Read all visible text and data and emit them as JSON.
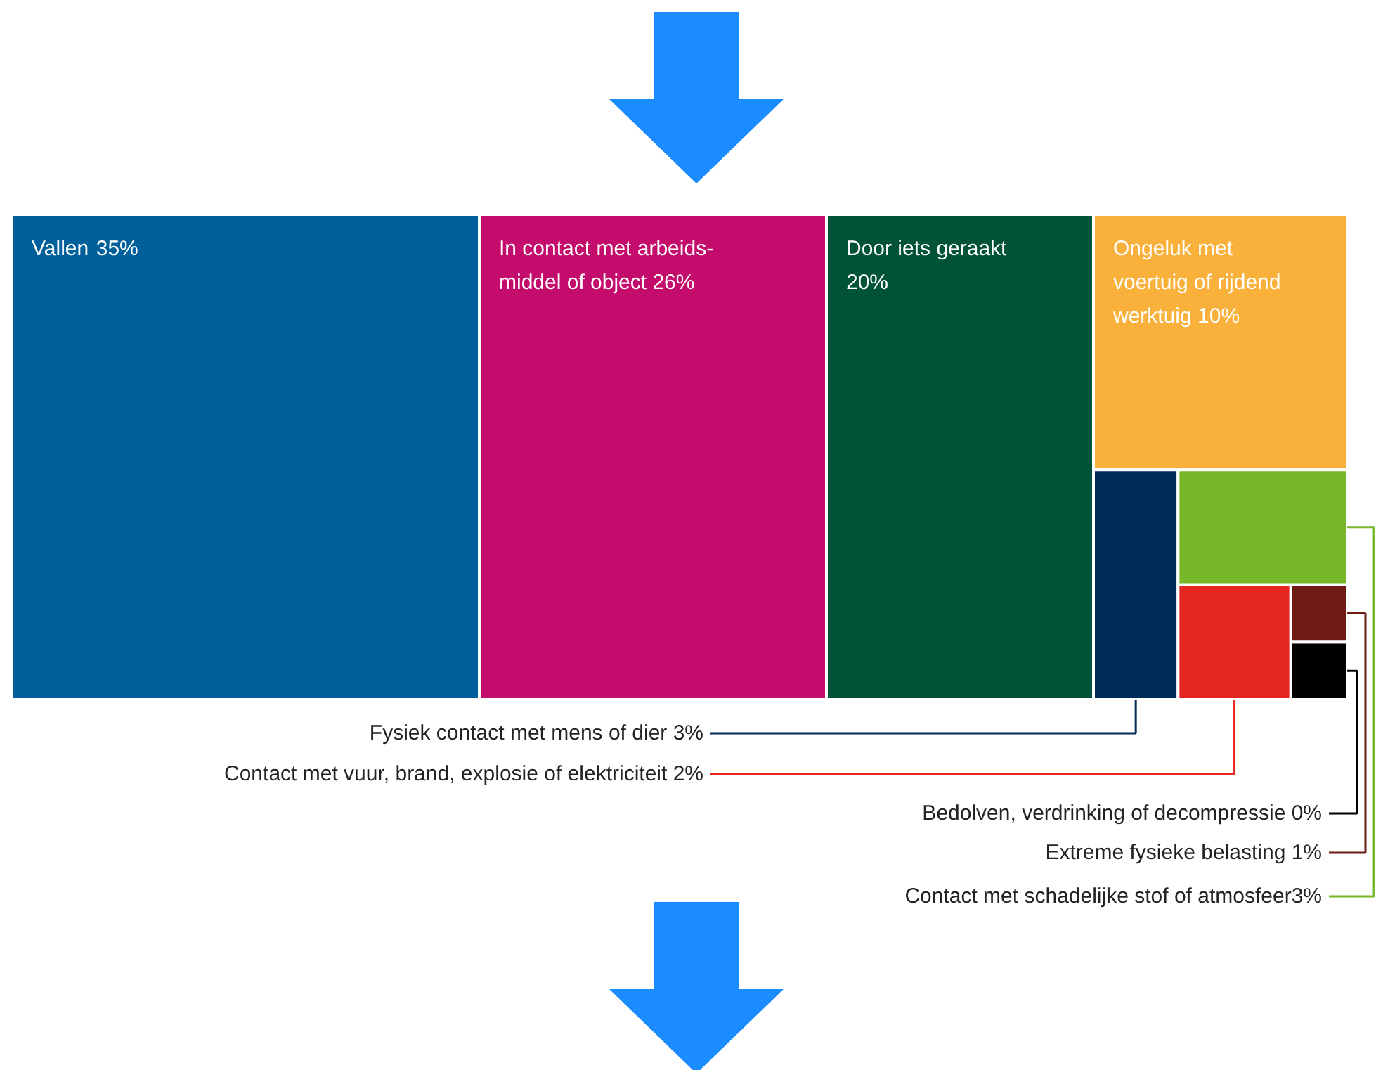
{
  "chart_data": {
    "type": "other",
    "categories": [
      "Vallen ",
      "In contact met arbeids-\nmiddel of object ",
      "Door iets geraakt\n",
      "Ongeluk met\nvoertuig of rijdend\nwerktuig ",
      "Fysiek contact met mens of dier ",
      "Contact met vuur, brand, explosie of elektriciteit ",
      "Bedolven, verdrinking of decompressie ",
      "Extreme fysieke belasting ",
      "Contact met schadelijke stof of atmosfeer"
    ],
    "values": [
      35,
      26,
      20,
      10,
      3,
      2,
      0,
      1,
      3
    ],
    "value_labels": [
      "35%",
      "26%",
      "20%",
      "10%",
      "3%",
      "2%",
      "0%",
      "1%",
      "3%"
    ],
    "colors": [
      "#00609c",
      "#c40c6c",
      "#005239",
      "#f9b13b",
      "#002b56",
      "#e3261f",
      "#000000",
      "#6f1a12",
      "#76b82a"
    ]
  }
}
